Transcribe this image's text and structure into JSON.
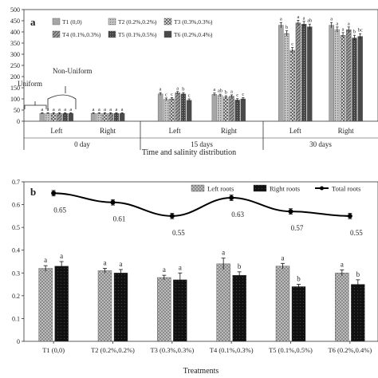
{
  "chart_data": [
    {
      "type": "bar",
      "panel_label": "a",
      "xlabel": "Time and salinity distribution",
      "ylim": [
        0,
        500
      ],
      "yticks": [
        "0",
        "50",
        "100",
        "150",
        "200",
        "250",
        "300",
        "350",
        "400",
        "450",
        "500"
      ],
      "groups": [
        {
          "time": "0 day",
          "sides": [
            "Left",
            "Right"
          ]
        },
        {
          "time": "15 days",
          "sides": [
            "Left",
            "Right"
          ]
        },
        {
          "time": "30 days",
          "sides": [
            "Left",
            "Right"
          ]
        }
      ],
      "annotations": {
        "uniform": "Uniform",
        "non_uniform": "Non-Uniform"
      },
      "series": [
        {
          "name": "T1 (0,0)",
          "color": "#9e9e9e",
          "values": [
            35,
            35,
            122,
            120,
            430,
            430
          ],
          "errors": [
            3,
            3,
            6,
            6,
            12,
            12
          ],
          "letters": [
            "a",
            "a",
            "a",
            "a",
            "a",
            "a"
          ]
        },
        {
          "name": "T2 (0.2%,0.2%)",
          "color": "#b5b5b5",
          "values": [
            35,
            35,
            98,
            115,
            393,
            410
          ],
          "errors": [
            3,
            3,
            6,
            6,
            12,
            12
          ],
          "letters": [
            "a",
            "a",
            "c",
            "ab",
            "b",
            "a"
          ]
        },
        {
          "name": "T3 (0.3%,0.3%)",
          "color": "#8a8a8a",
          "values": [
            35,
            35,
            100,
            108,
            318,
            385
          ],
          "errors": [
            3,
            3,
            6,
            6,
            12,
            12
          ],
          "letters": [
            "a",
            "a",
            "c",
            "b",
            "c",
            "a"
          ]
        },
        {
          "name": "T4 (0.1%,0.3%)",
          "color": "#6f6f6f",
          "values": [
            35,
            35,
            127,
            112,
            440,
            410
          ],
          "errors": [
            3,
            3,
            6,
            6,
            12,
            12
          ],
          "letters": [
            "a",
            "a",
            "a",
            "a",
            "a",
            "a"
          ]
        },
        {
          "name": "T5 (0.1%,0.5%)",
          "color": "#555555",
          "values": [
            35,
            35,
            122,
            95,
            435,
            373
          ],
          "errors": [
            3,
            3,
            6,
            6,
            12,
            12
          ],
          "letters": [
            "a",
            "a",
            "b",
            "c",
            "a",
            "b"
          ]
        },
        {
          "name": "T6 (0.2%,0.4%)",
          "color": "#3d3d3d",
          "values": [
            35,
            35,
            94,
            100,
            423,
            380
          ],
          "errors": [
            3,
            3,
            6,
            6,
            12,
            12
          ],
          "letters": [
            "a",
            "a",
            "c",
            "c",
            "ab",
            "bc"
          ]
        }
      ]
    },
    {
      "type": "bar",
      "panel_label": "b",
      "xlabel": "Treatments",
      "ylim": [
        0,
        0.7
      ],
      "yticks": [
        "0",
        "0.1",
        "0.2",
        "0.3",
        "0.4",
        "0.5",
        "0.6",
        "0.7"
      ],
      "categories": [
        "T1 (0,0)",
        "T2 (0.2%,0.2%)",
        "T3 (0.3%,0.3%)",
        "T4 (0.1%,0.3%)",
        "T5 (0.1%,0.5%)",
        "T6 (0.2%,0.4%)"
      ],
      "series": [
        {
          "name": "Left roots",
          "kind": "bar",
          "color": "#a8a8a8",
          "values": [
            0.32,
            0.31,
            0.28,
            0.34,
            0.33,
            0.3
          ],
          "errors": [
            0.012,
            0.01,
            0.01,
            0.025,
            0.012,
            0.013
          ],
          "letters": [
            "a",
            "a",
            "a",
            "a",
            "a",
            "a"
          ]
        },
        {
          "name": "Right roots",
          "kind": "bar",
          "color": "#222222",
          "values": [
            0.33,
            0.3,
            0.27,
            0.29,
            0.24,
            0.25
          ],
          "errors": [
            0.02,
            0.015,
            0.03,
            0.015,
            0.01,
            0.02
          ],
          "letters": [
            "a",
            "a",
            "a",
            "b",
            "b",
            "b"
          ]
        },
        {
          "name": "Total roots",
          "kind": "line",
          "color": "#000000",
          "values": [
            0.65,
            0.61,
            0.55,
            0.63,
            0.57,
            0.55
          ],
          "errors": [
            0.012,
            0.012,
            0.012,
            0.012,
            0.012,
            0.012
          ],
          "labels": [
            "0.65",
            "0.61",
            "0.55",
            "0.63",
            "0.57",
            "0.55"
          ]
        }
      ]
    }
  ]
}
